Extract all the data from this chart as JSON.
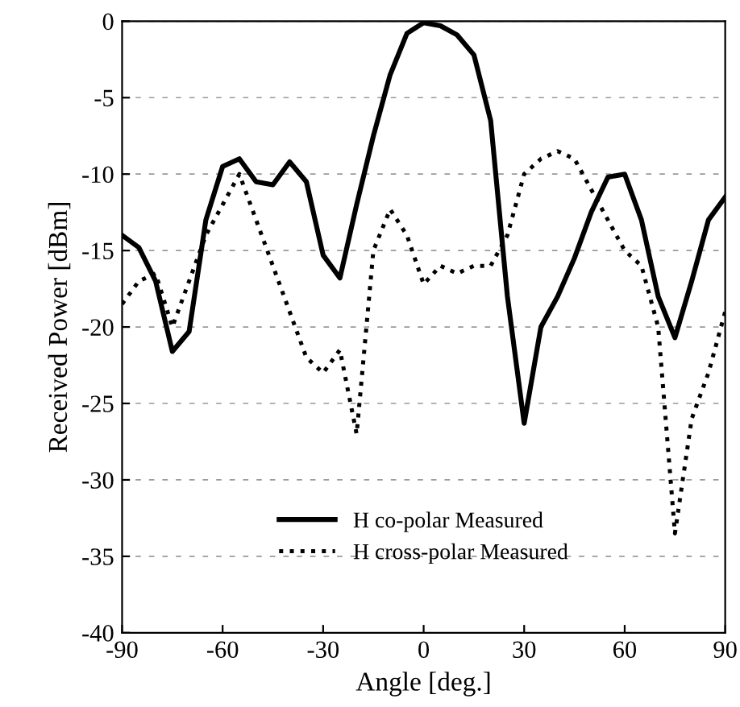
{
  "chart_data": {
    "type": "line",
    "xlabel": "Angle [deg.]",
    "ylabel": "Received Power [dBm]",
    "x": [
      -90,
      -85,
      -80,
      -75,
      -70,
      -65,
      -60,
      -55,
      -50,
      -45,
      -40,
      -35,
      -30,
      -25,
      -20,
      -15,
      -10,
      -5,
      0,
      5,
      10,
      15,
      20,
      25,
      30,
      35,
      40,
      45,
      50,
      55,
      60,
      65,
      70,
      75,
      80,
      85,
      90
    ],
    "series": [
      {
        "name": "H co-polar Measured",
        "color": "#000000",
        "line_style": "solid",
        "values": [
          -14,
          -14.8,
          -17,
          -21.6,
          -20.3,
          -13,
          -9.5,
          -9,
          -10.5,
          -10.7,
          -9.2,
          -10.5,
          -15.3,
          -16.8,
          -12,
          -7.5,
          -3.5,
          -0.8,
          -0.1,
          -0.3,
          -0.9,
          -2.2,
          -6.5,
          -18,
          -26.3,
          -20,
          -18,
          -15.5,
          -12.5,
          -10.2,
          -10,
          -13,
          -18,
          -20.7,
          -17,
          -13,
          -11.5
        ]
      },
      {
        "name": "H cross-polar Measured",
        "color": "#000000",
        "line_style": "dotted",
        "values": [
          -18.5,
          -17,
          -16.5,
          -20,
          -17,
          -14,
          -12,
          -10,
          -13,
          -16,
          -19,
          -22,
          -23,
          -21.5,
          -27,
          -15,
          -12.3,
          -14,
          -17.2,
          -16,
          -16.5,
          -16,
          -16,
          -14,
          -10,
          -9,
          -8.5,
          -9,
          -11,
          -13,
          -15,
          -16,
          -20,
          -33.5,
          -26,
          -23,
          -19
        ]
      }
    ],
    "xlim": [
      -90,
      90
    ],
    "xticks": [
      -90,
      -60,
      -30,
      0,
      30,
      60,
      90
    ],
    "ylim": [
      -40,
      0
    ],
    "yticks": [
      -40,
      -35,
      -30,
      -25,
      -20,
      -15,
      -10,
      -5,
      0
    ],
    "grid": "y",
    "legend": "bottom"
  }
}
